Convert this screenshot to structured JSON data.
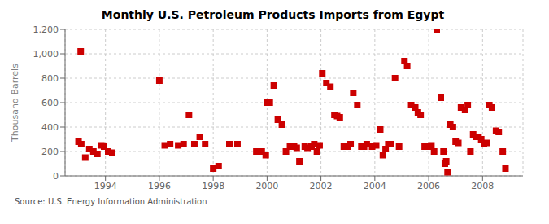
{
  "chart_data": {
    "type": "scatter",
    "title": "Monthly U.S. Petroleum Products Imports from Egypt",
    "ylabel": "Thousand Barrels",
    "annotations": [
      "Source: U.S. Energy Information Administration"
    ],
    "color": "#cc0000",
    "marker": "square",
    "grid": true,
    "xlim": [
      1992.5,
      2009.5
    ],
    "xticks": [
      1994,
      1996,
      1998,
      2000,
      2002,
      2004,
      2006,
      2008
    ],
    "ylim": [
      0,
      1200
    ],
    "yticks": [
      0,
      200,
      400,
      600,
      800,
      {
        "value": 1000,
        "label": "1,000"
      },
      {
        "value": 1200,
        "label": "1,200"
      }
    ],
    "x": [
      1993.0,
      1993.1,
      1993.25,
      1993.4,
      1993.55,
      1993.08,
      1993.7,
      1993.85,
      1993.95,
      1994.1,
      1994.25,
      1996.0,
      1996.2,
      1996.4,
      1996.7,
      1996.9,
      1997.1,
      1997.3,
      1997.5,
      1997.7,
      1998.0,
      1998.2,
      1998.6,
      1998.9,
      1999.6,
      1999.7,
      1999.8,
      1999.95,
      2000.0,
      2000.1,
      2000.25,
      2000.4,
      2000.55,
      2000.7,
      2000.85,
      2001.0,
      2001.1,
      2001.2,
      2001.4,
      2001.5,
      2001.65,
      2001.75,
      2001.85,
      2001.95,
      2002.05,
      2002.2,
      2002.35,
      2002.5,
      2002.6,
      2002.7,
      2002.85,
      2003.0,
      2003.1,
      2003.2,
      2003.35,
      2003.5,
      2003.6,
      2003.7,
      2003.9,
      2004.05,
      2004.2,
      2004.3,
      2004.4,
      2004.5,
      2004.6,
      2004.75,
      2004.9,
      2005.1,
      2005.2,
      2005.35,
      2005.5,
      2005.6,
      2005.7,
      2005.85,
      2006.0,
      2006.1,
      2006.2,
      2006.3,
      2006.45,
      2006.55,
      2006.6,
      2006.65,
      2006.7,
      2006.8,
      2006.9,
      2007.0,
      2007.1,
      2007.2,
      2007.35,
      2007.45,
      2007.55,
      2007.65,
      2007.75,
      2007.85,
      2007.95,
      2008.05,
      2008.15,
      2008.25,
      2008.35,
      2008.5,
      2008.6,
      2008.75,
      2008.85
    ],
    "values": [
      280,
      260,
      150,
      220,
      200,
      1020,
      180,
      250,
      240,
      200,
      190,
      780,
      250,
      260,
      250,
      260,
      500,
      260,
      320,
      260,
      60,
      80,
      260,
      260,
      200,
      200,
      200,
      170,
      600,
      600,
      740,
      460,
      420,
      200,
      240,
      240,
      230,
      120,
      240,
      230,
      240,
      260,
      200,
      250,
      840,
      760,
      730,
      500,
      490,
      480,
      240,
      240,
      260,
      680,
      580,
      240,
      240,
      260,
      240,
      250,
      380,
      170,
      220,
      260,
      260,
      800,
      240,
      940,
      900,
      580,
      560,
      520,
      500,
      240,
      240,
      250,
      200,
      1200,
      640,
      200,
      100,
      120,
      30,
      420,
      400,
      280,
      270,
      560,
      540,
      580,
      200,
      340,
      320,
      320,
      300,
      260,
      270,
      580,
      560,
      370,
      360,
      200,
      60
    ]
  }
}
